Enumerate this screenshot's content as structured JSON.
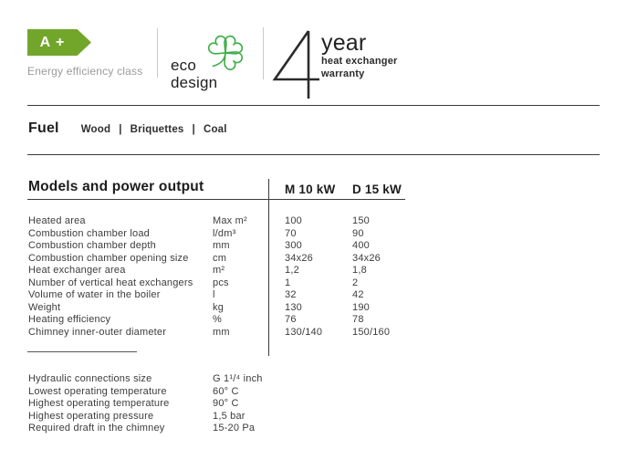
{
  "energy_label": {
    "class": "A +",
    "caption": "Energy efficiency class",
    "badge_color": "#71a62b"
  },
  "ecodesign": {
    "line1": "eco",
    "line2": "design",
    "icon_color": "#3fae49"
  },
  "warranty": {
    "number": "4",
    "unit": "year",
    "line1": "heat exchanger",
    "line2": "warranty"
  },
  "fuel": {
    "title": "Fuel",
    "separator": "|",
    "items": [
      "Wood",
      "Briquettes",
      "Coal"
    ]
  },
  "spec_table": {
    "title": "Models and power output",
    "columns": [
      "M 10 kW",
      "D 15 kW"
    ],
    "rows": [
      {
        "label": "Heated area",
        "unit": "Max m²",
        "m10": "100",
        "d15": "150"
      },
      {
        "label": "Combustion chamber load",
        "unit": "l/dm³",
        "m10": "70",
        "d15": "90"
      },
      {
        "label": "Combustion chamber depth",
        "unit": "mm",
        "m10": "300",
        "d15": "400"
      },
      {
        "label": "Combustion chamber opening size",
        "unit": "cm",
        "m10": "34x26",
        "d15": "34x26"
      },
      {
        "label": "Heat exchanger area",
        "unit": "m²",
        "m10": "1,2",
        "d15": "1,8"
      },
      {
        "label": "Number of vertical heat exchangers",
        "unit": "pcs",
        "m10": "1",
        "d15": "2"
      },
      {
        "label": "Volume of water in the boiler",
        "unit": "l",
        "m10": "32",
        "d15": "42"
      },
      {
        "label": "Weight",
        "unit": "kg",
        "m10": "130",
        "d15": "190"
      },
      {
        "label": "Heating efficiency",
        "unit": "%",
        "m10": "76",
        "d15": "78"
      },
      {
        "label": "Chimney inner-outer diameter",
        "unit": "mm",
        "m10": "130/140",
        "d15": "150/160"
      }
    ]
  },
  "extra_specs": {
    "rows": [
      {
        "label": "Hydraulic connections size",
        "value": "G 1¹/⁴ inch"
      },
      {
        "label": "Lowest operating temperature",
        "value": "60° C"
      },
      {
        "label": "Highest operating temperature",
        "value": "90° C"
      },
      {
        "label": "Highest operating pressure",
        "value": "1,5 bar"
      },
      {
        "label": "Required draft in the chimney",
        "value": "15-20 Pa"
      }
    ]
  }
}
